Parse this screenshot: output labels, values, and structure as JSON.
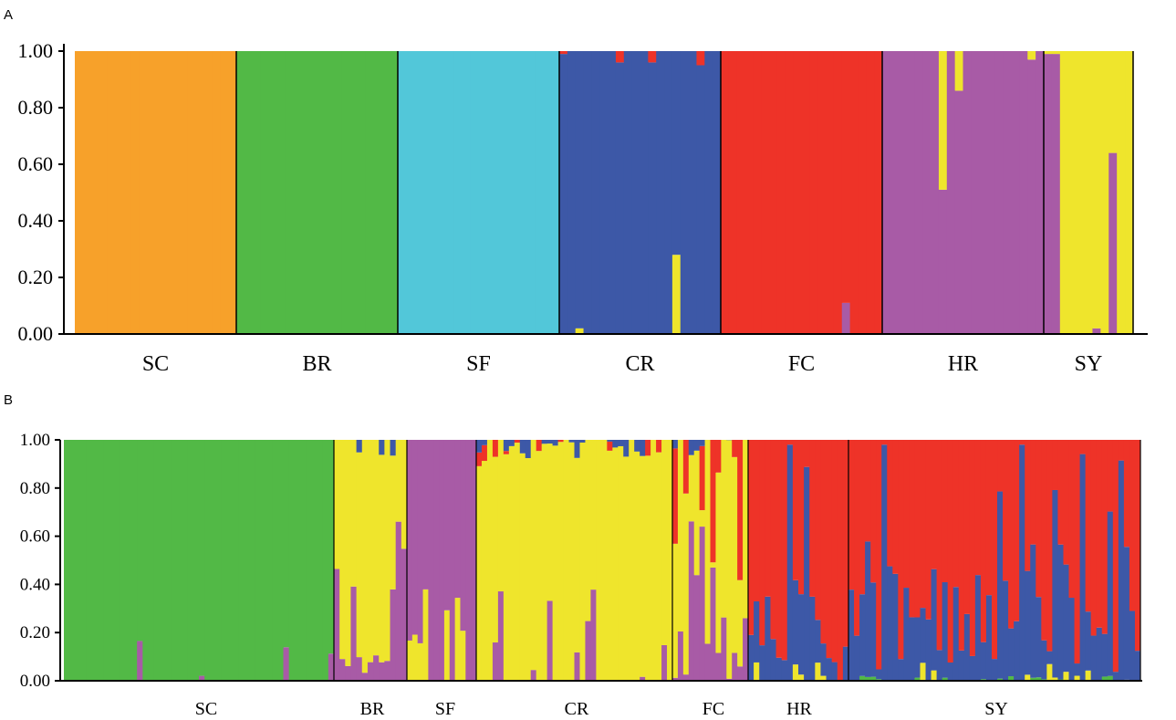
{
  "panels": [
    {
      "letter": "A",
      "chart_data": {
        "type": "bar",
        "subtype": "stacked-structure-plot",
        "title": "",
        "xlabel": "",
        "ylabel": "",
        "ylim": [
          0,
          1
        ],
        "y_ticks": [
          "0.00",
          "0.20",
          "0.40",
          "0.60",
          "0.80",
          "1.00"
        ],
        "grid": false,
        "legend": "none",
        "clusters": [
          {
            "color": "#F7A12A"
          },
          {
            "color": "#52B946"
          },
          {
            "color": "#52C7D9"
          },
          {
            "color": "#3D58A7"
          },
          {
            "color": "#EE3328"
          },
          {
            "color": "#A85BA6"
          },
          {
            "color": "#EFE52C"
          }
        ],
        "populations": [
          {
            "label": "SC",
            "n": 20,
            "cluster": 0,
            "admixed": []
          },
          {
            "label": "BR",
            "n": 20,
            "cluster": 1,
            "admixed": []
          },
          {
            "label": "SF",
            "n": 20,
            "cluster": 2,
            "admixed": []
          },
          {
            "label": "CR",
            "n": 20,
            "cluster": 3,
            "admixed": [
              {
                "i": 0,
                "cluster": 4,
                "value": 0.01
              },
              {
                "i": 2,
                "cluster": 6,
                "value": 0.02
              },
              {
                "i": 7,
                "cluster": 4,
                "value": 0.04
              },
              {
                "i": 11,
                "cluster": 4,
                "value": 0.04
              },
              {
                "i": 14,
                "cluster": 6,
                "value": 0.28
              },
              {
                "i": 17,
                "cluster": 4,
                "value": 0.05
              }
            ]
          },
          {
            "label": "FC",
            "n": 20,
            "cluster": 4,
            "admixed": [
              {
                "i": 15,
                "cluster": 5,
                "value": 0.11
              }
            ]
          },
          {
            "label": "HR",
            "n": 20,
            "cluster": 5,
            "admixed": [
              {
                "i": 7,
                "cluster": 6,
                "value": 0.49
              },
              {
                "i": 9,
                "cluster": 6,
                "value": 0.14
              },
              {
                "i": 18,
                "cluster": 6,
                "value": 0.03
              }
            ]
          },
          {
            "label": "SY",
            "n": 11,
            "cluster": 6,
            "admixed": [
              {
                "i": 0,
                "cluster": 5,
                "value": 0.99
              },
              {
                "i": 1,
                "cluster": 5,
                "value": 0.99
              },
              {
                "i": 6,
                "cluster": 5,
                "value": 0.02
              },
              {
                "i": 8,
                "cluster": 5,
                "value": 0.64
              }
            ]
          }
        ]
      }
    },
    {
      "letter": "B",
      "chart_data": {
        "type": "bar",
        "subtype": "stacked-structure-plot",
        "title": "",
        "xlabel": "",
        "ylabel": "",
        "ylim": [
          0,
          1
        ],
        "y_ticks": [
          "0.00",
          "0.20",
          "0.40",
          "0.60",
          "0.80",
          "1.00"
        ],
        "grid": false,
        "legend": "none",
        "clusters": [
          {
            "color": "#52B946"
          },
          {
            "color": "#EFE52C"
          },
          {
            "color": "#A85BA6"
          },
          {
            "color": "#EE3328"
          },
          {
            "color": "#3D58A7"
          }
        ],
        "populations": [
          {
            "label": "SC",
            "n": 48
          },
          {
            "label": "BR",
            "n": 13
          },
          {
            "label": "SF",
            "n": 13
          },
          {
            "label": "CR",
            "n": 36
          },
          {
            "label": "FC",
            "n": 14
          },
          {
            "label": "HR",
            "n": 18
          },
          {
            "label": "SY",
            "n": 53
          }
        ],
        "composition": [
          {
            "population": "SC",
            "dominant": 0,
            "minor": {
              "2": 0.02
            }
          },
          {
            "population": "BR",
            "dominant": 1,
            "minor": {
              "2": 0.25,
              "4": 0.02
            }
          },
          {
            "population": "SF",
            "dominant": 2,
            "minor": {
              "1": 0.1
            }
          },
          {
            "population": "CR",
            "dominant": 1,
            "minor": {
              "2": 0.12,
              "3": 0.02,
              "4": 0.02
            }
          },
          {
            "population": "FC",
            "dominant": 1,
            "minor": {
              "2": 0.3,
              "3": 0.15,
              "4": 0.02
            }
          },
          {
            "population": "HR",
            "dominant": 3,
            "minor": {
              "4": 0.35,
              "1": 0.02
            }
          },
          {
            "population": "SY",
            "dominant": 3,
            "minor": {
              "4": 0.45,
              "1": 0.02,
              "0": 0.005
            }
          }
        ]
      }
    }
  ]
}
